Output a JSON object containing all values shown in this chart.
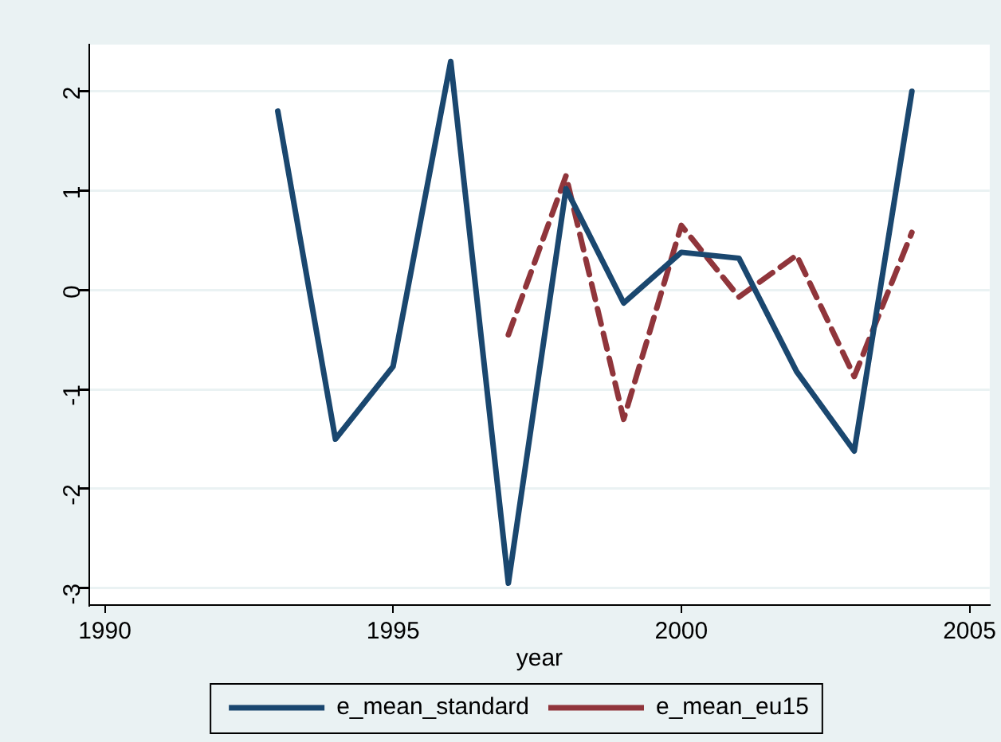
{
  "chart_data": {
    "type": "line",
    "xlabel": "year",
    "x": [
      1993,
      1994,
      1995,
      1996,
      1997,
      1998,
      1999,
      2000,
      2001,
      2002,
      2003,
      2004
    ],
    "series": [
      {
        "name": "e_mean_standard",
        "color": "#1a476f",
        "line_style": "solid",
        "values": [
          1.8,
          -1.5,
          -0.77,
          2.3,
          -2.95,
          1.02,
          -0.13,
          0.38,
          0.32,
          -0.82,
          -1.62,
          2.0
        ]
      },
      {
        "name": "e_mean_eu15",
        "color": "#90353b",
        "line_style": "dashed",
        "values": [
          null,
          null,
          null,
          null,
          -0.45,
          1.15,
          -1.3,
          0.65,
          -0.07,
          0.35,
          -0.87,
          0.58
        ]
      }
    ],
    "xlim": [
      1989.73,
      2005.35
    ],
    "xticks": [
      1990,
      1995,
      2000,
      2005
    ],
    "ylim": [
      -3.17,
      2.47
    ],
    "yticks": [
      -3,
      -2,
      -1,
      0,
      1,
      2
    ],
    "grid": "y",
    "legend": "bottom",
    "marker": "none"
  }
}
